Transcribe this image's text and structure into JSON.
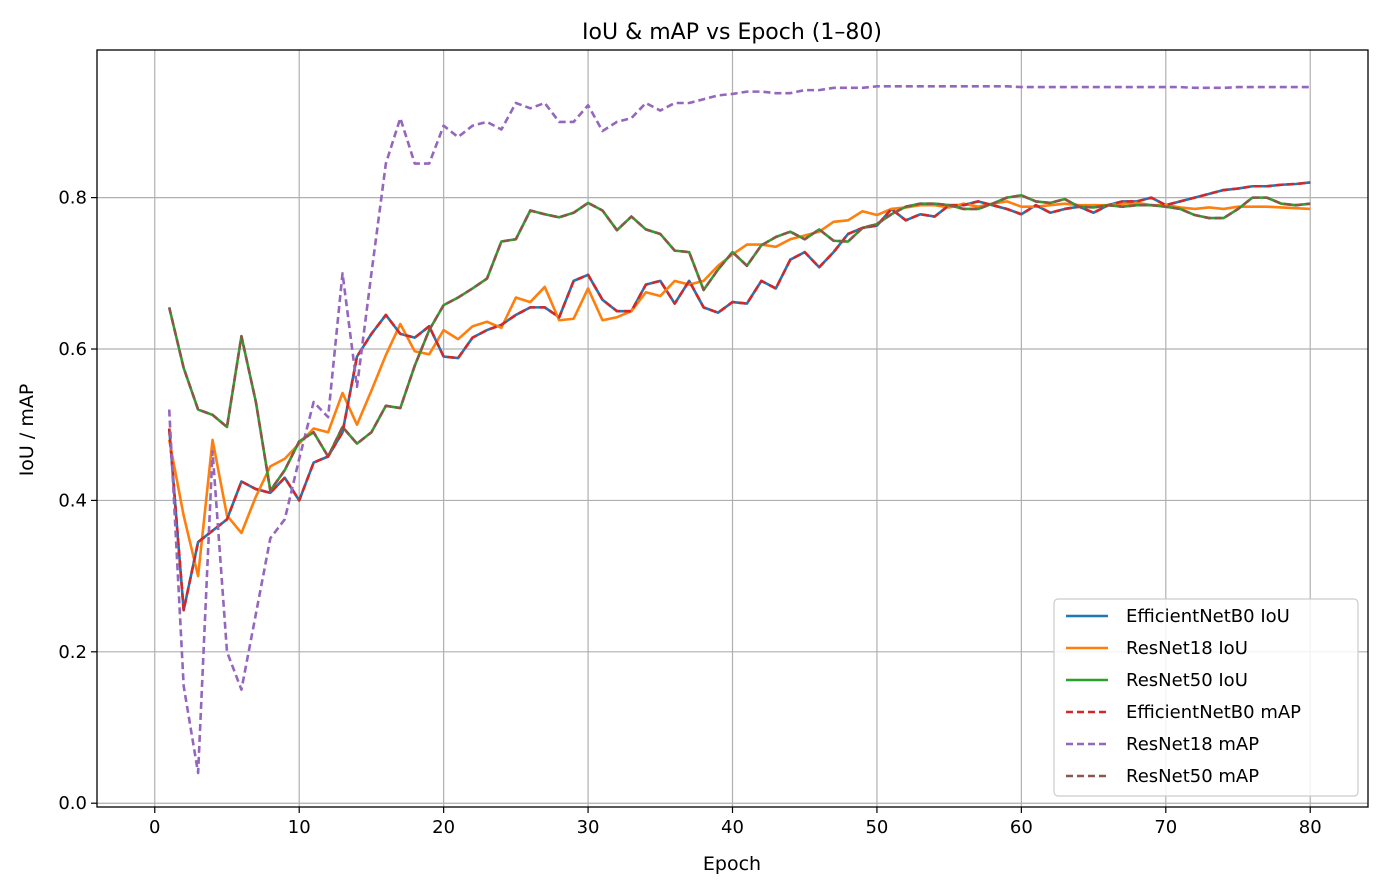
{
  "chart_data": {
    "type": "line",
    "title": "IoU & mAP vs Epoch (1–80)",
    "xlabel": "Epoch",
    "ylabel": "IoU / mAP",
    "xlim": [
      -4,
      84
    ],
    "ylim": [
      -0.005,
      0.995
    ],
    "xticks": [
      0,
      10,
      20,
      30,
      40,
      50,
      60,
      70,
      80
    ],
    "yticks": [
      0.0,
      0.2,
      0.4,
      0.6,
      0.8
    ],
    "grid": true,
    "legend_position": "lower-right",
    "series": [
      {
        "name": "EfficientNetB0 IoU",
        "color": "#1f77b4",
        "dash": "solid",
        "values": [
          0.495,
          0.255,
          0.345,
          0.36,
          0.375,
          0.425,
          0.415,
          0.41,
          0.43,
          0.4,
          0.45,
          0.458,
          0.49,
          0.59,
          0.62,
          0.645,
          0.62,
          0.615,
          0.63,
          0.59,
          0.588,
          0.615,
          0.625,
          0.632,
          0.645,
          0.655,
          0.655,
          0.642,
          0.69,
          0.698,
          0.665,
          0.65,
          0.65,
          0.685,
          0.69,
          0.66,
          0.69,
          0.655,
          0.648,
          0.662,
          0.66,
          0.69,
          0.68,
          0.718,
          0.728,
          0.708,
          0.728,
          0.752,
          0.76,
          0.763,
          0.785,
          0.77,
          0.778,
          0.775,
          0.79,
          0.79,
          0.795,
          0.79,
          0.785,
          0.778,
          0.79,
          0.78,
          0.785,
          0.788,
          0.78,
          0.79,
          0.795,
          0.795,
          0.8,
          0.79,
          0.795,
          0.8,
          0.805,
          0.81,
          0.812,
          0.815,
          0.815,
          0.817,
          0.818,
          0.82
        ]
      },
      {
        "name": "ResNet18 IoU",
        "color": "#ff7f0e",
        "dash": "solid",
        "values": [
          0.48,
          0.38,
          0.3,
          0.48,
          0.38,
          0.357,
          0.405,
          0.445,
          0.455,
          0.475,
          0.495,
          0.49,
          0.542,
          0.5,
          0.545,
          0.592,
          0.633,
          0.597,
          0.593,
          0.625,
          0.613,
          0.63,
          0.636,
          0.628,
          0.668,
          0.662,
          0.682,
          0.638,
          0.64,
          0.68,
          0.638,
          0.642,
          0.65,
          0.675,
          0.67,
          0.69,
          0.685,
          0.69,
          0.71,
          0.725,
          0.738,
          0.738,
          0.735,
          0.745,
          0.75,
          0.755,
          0.768,
          0.77,
          0.782,
          0.777,
          0.785,
          0.787,
          0.79,
          0.79,
          0.787,
          0.792,
          0.788,
          0.792,
          0.795,
          0.788,
          0.788,
          0.79,
          0.792,
          0.79,
          0.79,
          0.79,
          0.792,
          0.793,
          0.79,
          0.79,
          0.787,
          0.785,
          0.787,
          0.785,
          0.788,
          0.788,
          0.788,
          0.787,
          0.786,
          0.785
        ]
      },
      {
        "name": "ResNet50 IoU",
        "color": "#2ca02c",
        "dash": "solid",
        "values": [
          0.655,
          0.575,
          0.52,
          0.513,
          0.497,
          0.617,
          0.53,
          0.413,
          0.44,
          0.478,
          0.49,
          0.458,
          0.497,
          0.475,
          0.49,
          0.525,
          0.522,
          0.578,
          0.625,
          0.658,
          0.668,
          0.68,
          0.693,
          0.742,
          0.745,
          0.783,
          0.778,
          0.774,
          0.78,
          0.793,
          0.783,
          0.757,
          0.775,
          0.758,
          0.752,
          0.73,
          0.728,
          0.678,
          0.705,
          0.728,
          0.71,
          0.737,
          0.748,
          0.755,
          0.745,
          0.758,
          0.743,
          0.742,
          0.76,
          0.765,
          0.778,
          0.788,
          0.792,
          0.792,
          0.79,
          0.785,
          0.785,
          0.792,
          0.8,
          0.803,
          0.795,
          0.793,
          0.798,
          0.788,
          0.787,
          0.79,
          0.788,
          0.79,
          0.79,
          0.788,
          0.785,
          0.777,
          0.773,
          0.773,
          0.785,
          0.8,
          0.8,
          0.792,
          0.79,
          0.792
        ]
      },
      {
        "name": "EfficientNetB0 mAP",
        "color": "#d62728",
        "dash": "dashed",
        "values": [
          0.495,
          0.255,
          0.345,
          0.36,
          0.375,
          0.425,
          0.415,
          0.41,
          0.43,
          0.4,
          0.45,
          0.458,
          0.49,
          0.59,
          0.62,
          0.645,
          0.62,
          0.615,
          0.63,
          0.59,
          0.588,
          0.615,
          0.625,
          0.632,
          0.645,
          0.655,
          0.655,
          0.642,
          0.69,
          0.698,
          0.665,
          0.65,
          0.65,
          0.685,
          0.69,
          0.66,
          0.69,
          0.655,
          0.648,
          0.662,
          0.66,
          0.69,
          0.68,
          0.718,
          0.728,
          0.708,
          0.728,
          0.752,
          0.76,
          0.763,
          0.785,
          0.77,
          0.778,
          0.775,
          0.79,
          0.79,
          0.795,
          0.79,
          0.785,
          0.778,
          0.79,
          0.78,
          0.785,
          0.788,
          0.78,
          0.79,
          0.795,
          0.795,
          0.8,
          0.79,
          0.795,
          0.8,
          0.805,
          0.81,
          0.812,
          0.815,
          0.815,
          0.817,
          0.818,
          0.82
        ]
      },
      {
        "name": "ResNet18 mAP",
        "color": "#9467bd",
        "dash": "dashed",
        "values": [
          0.52,
          0.155,
          0.04,
          0.465,
          0.2,
          0.15,
          0.25,
          0.35,
          0.375,
          0.455,
          0.53,
          0.51,
          0.7,
          0.55,
          0.7,
          0.845,
          0.905,
          0.845,
          0.845,
          0.895,
          0.88,
          0.895,
          0.9,
          0.89,
          0.925,
          0.918,
          0.925,
          0.9,
          0.9,
          0.922,
          0.888,
          0.9,
          0.905,
          0.925,
          0.915,
          0.925,
          0.925,
          0.93,
          0.935,
          0.937,
          0.94,
          0.94,
          0.938,
          0.938,
          0.942,
          0.942,
          0.945,
          0.945,
          0.945,
          0.947,
          0.947,
          0.947,
          0.947,
          0.947,
          0.947,
          0.947,
          0.947,
          0.947,
          0.947,
          0.946,
          0.946,
          0.946,
          0.946,
          0.946,
          0.946,
          0.946,
          0.946,
          0.946,
          0.946,
          0.946,
          0.946,
          0.945,
          0.945,
          0.945,
          0.946,
          0.946,
          0.946,
          0.946,
          0.946,
          0.946
        ]
      },
      {
        "name": "ResNet50 mAP",
        "color": "#8c564b",
        "dash": "dashed",
        "values": [
          0.655,
          0.575,
          0.52,
          0.513,
          0.497,
          0.617,
          0.53,
          0.413,
          0.44,
          0.478,
          0.49,
          0.458,
          0.497,
          0.475,
          0.49,
          0.525,
          0.522,
          0.578,
          0.625,
          0.658,
          0.668,
          0.68,
          0.693,
          0.742,
          0.745,
          0.783,
          0.778,
          0.774,
          0.78,
          0.793,
          0.783,
          0.757,
          0.775,
          0.758,
          0.752,
          0.73,
          0.728,
          0.678,
          0.705,
          0.728,
          0.71,
          0.737,
          0.748,
          0.755,
          0.745,
          0.758,
          0.743,
          0.742,
          0.76,
          0.765,
          0.778,
          0.788,
          0.792,
          0.792,
          0.79,
          0.785,
          0.785,
          0.792,
          0.8,
          0.803,
          0.795,
          0.793,
          0.798,
          0.788,
          0.787,
          0.79,
          0.788,
          0.79,
          0.79,
          0.788,
          0.785,
          0.777,
          0.773,
          0.773,
          0.785,
          0.8,
          0.8,
          0.792,
          0.79,
          0.792
        ]
      }
    ]
  }
}
